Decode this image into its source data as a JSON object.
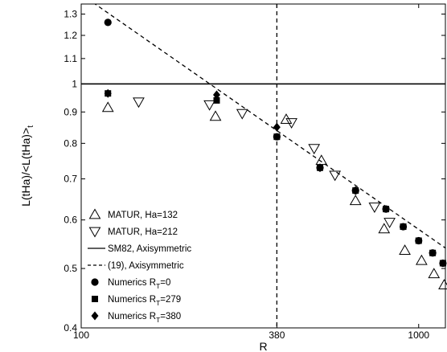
{
  "chart_data": {
    "type": "scatter",
    "title": "",
    "xlabel": "R",
    "ylabel": "L(tHa)/<L(tHa)>",
    "ylabel_subscript": "t",
    "x_scale": "log",
    "y_scale": "log",
    "xlim": [
      100,
      1200
    ],
    "ylim": [
      0.4,
      1.35
    ],
    "x_ticks": [
      {
        "value": 100,
        "label": "100"
      },
      {
        "value": 380,
        "label": "380"
      },
      {
        "value": 1000,
        "label": "1000"
      }
    ],
    "y_ticks": [
      {
        "value": 0.4,
        "label": "0.4"
      },
      {
        "value": 0.5,
        "label": "0.5"
      },
      {
        "value": 0.6,
        "label": "0.6"
      },
      {
        "value": 0.7,
        "label": "0.7"
      },
      {
        "value": 0.8,
        "label": "0.8"
      },
      {
        "value": 0.9,
        "label": "0.9"
      },
      {
        "value": 1.0,
        "label": "1"
      },
      {
        "value": 1.1,
        "label": "1.1"
      },
      {
        "value": 1.2,
        "label": "1.2"
      },
      {
        "value": 1.3,
        "label": "1.3"
      }
    ],
    "grid": false,
    "legend_position": "bottom-left",
    "reference_lines": [
      {
        "orientation": "horizontal",
        "value": 1.0,
        "style": "solid"
      },
      {
        "orientation": "vertical",
        "value": 380,
        "style": "dashed"
      }
    ],
    "series": [
      {
        "name": "MATUR, Ha=132",
        "marker": "triangle-up-open",
        "points": [
          [
            120,
            0.915
          ],
          [
            250,
            0.885
          ],
          [
            405,
            0.875
          ],
          [
            515,
            0.75
          ],
          [
            650,
            0.645
          ],
          [
            790,
            0.58
          ],
          [
            910,
            0.535
          ],
          [
            1020,
            0.515
          ],
          [
            1110,
            0.49
          ],
          [
            1190,
            0.47
          ]
        ]
      },
      {
        "name": "MATUR, Ha=212",
        "marker": "triangle-down-open",
        "points": [
          [
            148,
            0.935
          ],
          [
            240,
            0.925
          ],
          [
            300,
            0.895
          ],
          [
            420,
            0.865
          ],
          [
            490,
            0.785
          ],
          [
            565,
            0.71
          ],
          [
            740,
            0.63
          ],
          [
            820,
            0.595
          ]
        ]
      },
      {
        "name": "SM82, Axisymmetric",
        "style": "solid",
        "points": [
          [
            100,
            1.0
          ],
          [
            1200,
            1.0
          ]
        ]
      },
      {
        "name": "(19), Axisymmetric",
        "style": "dashed",
        "points": [
          [
            100,
            1.4
          ],
          [
            1200,
            0.54
          ]
        ]
      },
      {
        "name": "Numerics R_T=0",
        "marker": "circle",
        "points": [
          [
            120,
            1.26
          ],
          [
            380,
            0.82
          ],
          [
            510,
            0.73
          ],
          [
            650,
            0.67
          ],
          [
            800,
            0.625
          ],
          [
            900,
            0.585
          ],
          [
            1000,
            0.555
          ],
          [
            1100,
            0.53
          ],
          [
            1180,
            0.51
          ]
        ]
      },
      {
        "name": "Numerics R_T=279",
        "marker": "square",
        "points": [
          [
            120,
            0.965
          ],
          [
            252,
            0.94
          ],
          [
            380,
            0.82
          ],
          [
            510,
            0.73
          ],
          [
            650,
            0.67
          ],
          [
            800,
            0.625
          ],
          [
            900,
            0.585
          ],
          [
            1000,
            0.555
          ],
          [
            1100,
            0.53
          ],
          [
            1180,
            0.51
          ]
        ]
      },
      {
        "name": "Numerics R_T=380",
        "marker": "diamond",
        "points": [
          [
            120,
            0.965
          ],
          [
            252,
            0.96
          ],
          [
            380,
            0.85
          ],
          [
            510,
            0.73
          ],
          [
            650,
            0.67
          ]
        ]
      }
    ],
    "legend": [
      {
        "marker": "triangle-up-open",
        "text": "MATUR, Ha=132",
        "sub": ""
      },
      {
        "marker": "triangle-down-open",
        "text": "MATUR, Ha=212",
        "sub": ""
      },
      {
        "marker": "line-solid",
        "text": "SM82, Axisymmetric",
        "sub": ""
      },
      {
        "marker": "line-dashed",
        "text": "(19), Axisymmetric",
        "sub": ""
      },
      {
        "marker": "circle",
        "text": "Numerics R",
        "sub": "T",
        "suffix": "=0"
      },
      {
        "marker": "square",
        "text": "Numerics R",
        "sub": "T",
        "suffix": "=279"
      },
      {
        "marker": "diamond",
        "text": "Numerics R",
        "sub": "T",
        "suffix": "=380"
      }
    ],
    "colors": {
      "ink": "#000000",
      "background": "#ffffff"
    }
  }
}
